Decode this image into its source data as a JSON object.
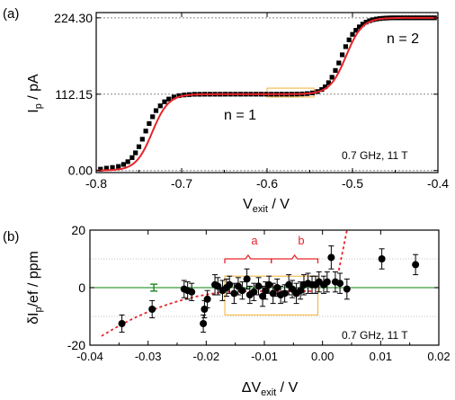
{
  "colors": {
    "data": "#000000",
    "fit": "#e8242a",
    "ref_line": "#888888",
    "box": "#f2b233",
    "bracket": "#e8242a",
    "zero_line": "#3a9a3a",
    "errbar_green": "#2e8b2e"
  },
  "chart_data": [
    {
      "panel_label": "(a)",
      "type": "scatter",
      "xlabel": {
        "main": "V",
        "sub": "exit",
        "tail": " / V"
      },
      "ylabel": {
        "main": "I",
        "sub": "p",
        "tail": " / pA"
      },
      "xlim": [
        -0.8,
        -0.4
      ],
      "ylim": [
        -3,
        232
      ],
      "xticks": [
        "-0.8",
        "-0.7",
        "-0.6",
        "-0.5",
        "-0.4"
      ],
      "xtick_values": [
        -0.8,
        -0.7,
        -0.6,
        -0.5,
        -0.4
      ],
      "yticks": [
        "0.00",
        "112.15",
        "224.30"
      ],
      "ytick_values": [
        0,
        112.15,
        224.3
      ],
      "reference_lines": [
        0,
        112.15,
        224.3
      ],
      "annotations": {
        "plateau1": "n = 1",
        "plateau2": "n = 2",
        "conditions": "0.7 GHz, 11 T"
      },
      "highlight_box": {
        "x": [
          -0.6,
          -0.545
        ],
        "y": [
          108,
          121
        ]
      },
      "series": [
        {
          "x": [
            -0.795,
            -0.788,
            -0.781,
            -0.774,
            -0.768,
            -0.763,
            -0.758,
            -0.754,
            -0.75,
            -0.746,
            -0.742,
            -0.738,
            -0.734,
            -0.73,
            -0.725,
            -0.72,
            -0.715,
            -0.709,
            -0.703,
            -0.697,
            -0.691,
            -0.685,
            -0.679,
            -0.673,
            -0.667,
            -0.661,
            -0.655,
            -0.649,
            -0.643,
            -0.637,
            -0.631,
            -0.625,
            -0.619,
            -0.613,
            -0.607,
            -0.601,
            -0.595,
            -0.589,
            -0.583,
            -0.577,
            -0.571,
            -0.565,
            -0.559,
            -0.553,
            -0.547,
            -0.541,
            -0.536,
            -0.532,
            -0.528,
            -0.524,
            -0.52,
            -0.516,
            -0.512,
            -0.508,
            -0.504,
            -0.5,
            -0.496,
            -0.492,
            -0.488,
            -0.484,
            -0.48,
            -0.476,
            -0.472,
            -0.468,
            -0.464,
            -0.46,
            -0.456,
            -0.452,
            -0.448,
            -0.444,
            -0.44,
            -0.436,
            -0.432,
            -0.428,
            -0.424,
            -0.42,
            -0.416,
            -0.412,
            -0.408,
            -0.404
          ],
          "y": [
            2.0,
            3.5,
            4.5,
            6.0,
            9.0,
            13.0,
            19.0,
            26.0,
            35.0,
            46.0,
            58.0,
            69.0,
            79.0,
            88.0,
            95.0,
            101.0,
            105.0,
            108.0,
            110.0,
            111.0,
            111.5,
            112.0,
            112.0,
            112.1,
            112.1,
            112.1,
            112.1,
            112.15,
            112.15,
            112.15,
            112.15,
            112.15,
            112.15,
            112.15,
            112.15,
            112.15,
            112.15,
            112.15,
            112.2,
            112.2,
            112.2,
            112.3,
            112.5,
            113.0,
            114.0,
            116.0,
            119.0,
            123.0,
            129.0,
            137.0,
            147.0,
            158.0,
            170.0,
            182.0,
            192.0,
            200.0,
            206.0,
            211.0,
            215.0,
            218.0,
            220.0,
            221.5,
            222.5,
            223.2,
            223.7,
            224.0,
            224.2,
            224.3,
            224.3,
            224.3,
            224.3,
            224.3,
            224.3,
            224.3,
            224.3,
            224.3,
            224.3,
            224.3,
            224.3,
            224.3
          ]
        }
      ]
    },
    {
      "panel_label": "(b)",
      "type": "scatter",
      "xlabel": {
        "main": "ΔV",
        "sub": "exit",
        "tail": " / V"
      },
      "ylabel": {
        "main": "δI",
        "sub": "p",
        "tail": "/ef / ppm"
      },
      "xlim": [
        -0.04,
        0.02
      ],
      "ylim": [
        -20,
        20
      ],
      "xticks": [
        "-0.04",
        "-0.03",
        "-0.02",
        "-0.01",
        "0.00",
        "0.01",
        "0.02"
      ],
      "xtick_values": [
        -0.04,
        -0.03,
        -0.02,
        -0.01,
        0.0,
        0.01,
        0.02
      ],
      "yticks": [
        "-20",
        "0",
        "20"
      ],
      "ytick_values": [
        -20,
        0,
        20
      ],
      "annotations": {
        "bracket_a": "a",
        "bracket_b": "b",
        "conditions": "0.7 GHz, 11 T"
      },
      "brackets": [
        {
          "label": "a",
          "x": [
            -0.0168,
            -0.0088
          ]
        },
        {
          "label": "b",
          "x": [
            -0.0088,
            -0.0008
          ]
        }
      ],
      "highlight_box": {
        "x": [
          -0.0168,
          -0.0008
        ],
        "y": [
          -9.5,
          4
        ]
      },
      "reference_errbar": {
        "x": -0.029,
        "y": 0,
        "err": 1.2
      },
      "series": [
        {
          "x": [
            -0.0345,
            -0.0293,
            -0.0238,
            -0.0232,
            -0.0225,
            -0.0205,
            -0.0203,
            -0.0198,
            -0.0185,
            -0.018,
            -0.0172,
            -0.0165,
            -0.016,
            -0.0152,
            -0.0145,
            -0.0138,
            -0.013,
            -0.0125,
            -0.0118,
            -0.011,
            -0.0103,
            -0.0098,
            -0.0092,
            -0.0085,
            -0.0078,
            -0.0072,
            -0.0065,
            -0.0058,
            -0.0052,
            -0.0045,
            -0.0038,
            -0.0032,
            -0.0025,
            -0.0018,
            -0.0012,
            -0.0006,
            0.0002,
            0.0008,
            0.0015,
            0.0022,
            0.003,
            0.0042,
            0.0102,
            0.016
          ],
          "y": [
            -12.5,
            -7.5,
            -0.5,
            -1.0,
            -1.5,
            -12.5,
            -7.5,
            -4.0,
            1.0,
            0.5,
            -1.0,
            0.0,
            1.0,
            -2.0,
            0.5,
            -1.0,
            3.0,
            -2.5,
            -1.5,
            0.5,
            -3.0,
            -1.0,
            1.0,
            -2.0,
            0.0,
            -2.5,
            -2.0,
            1.0,
            -0.5,
            -2.0,
            -1.0,
            1.0,
            1.5,
            1.0,
            1.0,
            2.0,
            1.0,
            2.0,
            10.5,
            2.0,
            1.5,
            -0.5,
            10.0,
            8.0
          ],
          "err": [
            3.0,
            3.0,
            3.0,
            3.0,
            3.0,
            3.0,
            3.0,
            3.0,
            3.5,
            3.0,
            3.5,
            3.0,
            3.0,
            3.5,
            3.0,
            3.0,
            3.5,
            3.0,
            3.0,
            3.0,
            3.5,
            3.0,
            3.0,
            3.5,
            3.0,
            3.0,
            3.0,
            3.5,
            3.0,
            3.5,
            3.0,
            3.5,
            3.5,
            3.0,
            3.0,
            3.5,
            3.0,
            3.5,
            4.0,
            3.5,
            3.5,
            3.5,
            3.5,
            3.5
          ]
        }
      ]
    }
  ]
}
